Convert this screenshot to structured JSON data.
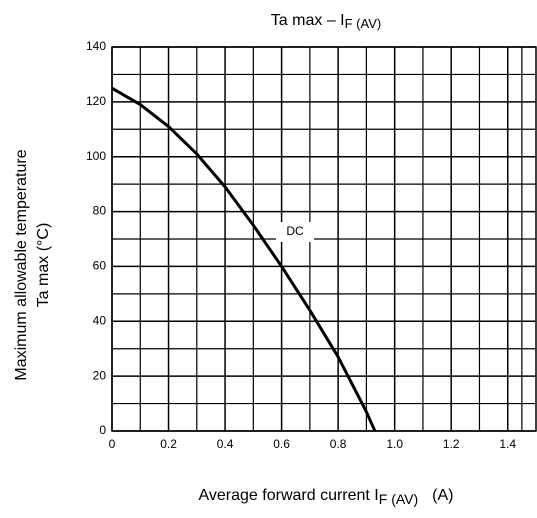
{
  "chart_data": {
    "type": "line",
    "title_main": "Ta max – I",
    "title_sub": "F (AV)",
    "y_label_line1": "Maximum allowable temperature",
    "y_label_line2": "Ta max    (°C)",
    "x_label_main": "Average forward current  I",
    "x_label_sub": "F (AV)",
    "x_label_unit": "(A)",
    "annotation": "DC",
    "x": [
      0,
      0.1,
      0.2,
      0.3,
      0.4,
      0.5,
      0.6,
      0.7,
      0.8,
      0.9,
      0.93
    ],
    "series": [
      {
        "name": "DC",
        "color": "#000000",
        "values": [
          125,
          119,
          111,
          101,
          89,
          75,
          60,
          44,
          27,
          7,
          0
        ]
      }
    ],
    "xlim": [
      0,
      1.5
    ],
    "ylim": [
      0,
      140
    ],
    "xticks": [
      0,
      0.2,
      0.4,
      0.6,
      0.8,
      {
        "value": 1,
        "label": "1.0"
      },
      1.2,
      1.4
    ],
    "yticks": [
      0,
      20,
      40,
      60,
      80,
      100,
      120,
      140
    ],
    "grid": true,
    "minor_grid": true
  }
}
